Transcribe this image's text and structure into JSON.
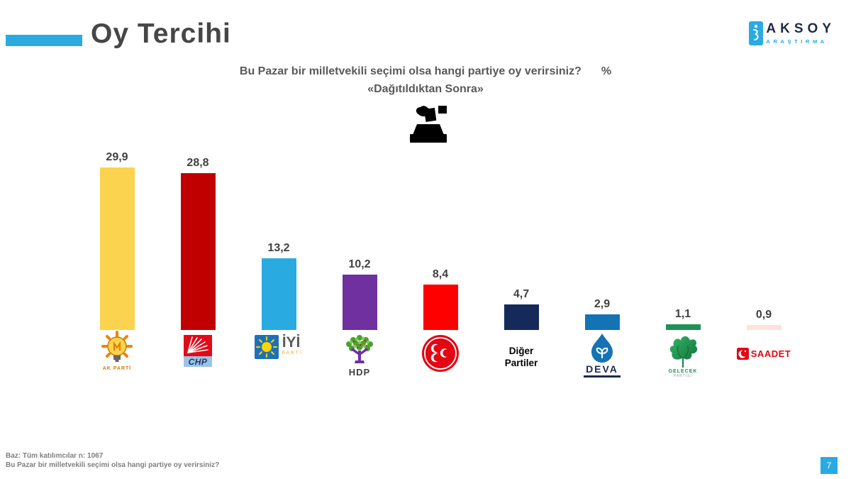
{
  "header": {
    "title": "Oy Tercihi",
    "accent_color": "#29ABE2",
    "brand": {
      "name": "AKSOY",
      "subtitle": "ARAŞTIRMA"
    }
  },
  "subtitle": {
    "question": "Bu Pazar bir milletvekili seçimi olsa hangi partiye oy verirsiniz?",
    "percent": "%",
    "line2": "«Dağıtıldıktan Sonra»"
  },
  "chart_data": {
    "type": "bar",
    "title": "Bu Pazar bir milletvekili seçimi olsa hangi partiye oy verirsiniz? % «Dağıtıldıktan Sonra»",
    "categories": [
      "AK PARTİ",
      "CHP",
      "İYİ PARTİ",
      "HDP",
      "MHP",
      "Diğer Partiler",
      "DEVA",
      "GELECEK PARTİSİ",
      "SAADET"
    ],
    "values": [
      29.9,
      28.8,
      13.2,
      10.2,
      8.4,
      4.7,
      2.9,
      1.1,
      0.9
    ],
    "ylim": [
      0,
      33
    ],
    "grid": false,
    "legend": false,
    "bars": [
      {
        "party": "AK PARTİ",
        "value": 29.9,
        "label": "29,9",
        "color": "#FBD34F"
      },
      {
        "party": "CHP",
        "value": 28.8,
        "label": "28,8",
        "color": "#C00000"
      },
      {
        "party": "İYİ PARTİ",
        "value": 13.2,
        "label": "13,2",
        "color": "#29ABE2"
      },
      {
        "party": "HDP",
        "value": 10.2,
        "label": "10,2",
        "color": "#7030A0"
      },
      {
        "party": "MHP",
        "value": 8.4,
        "label": "8,4",
        "color": "#FF0000"
      },
      {
        "party": "Diğer Partiler",
        "value": 4.7,
        "label": "4,7",
        "color": "#16295B"
      },
      {
        "party": "DEVA",
        "value": 2.9,
        "label": "2,9",
        "color": "#1473B5"
      },
      {
        "party": "GELECEK PARTİSİ",
        "value": 1.1,
        "label": "1,1",
        "color": "#1E9254"
      },
      {
        "party": "SAADET",
        "value": 0.9,
        "label": "0,9",
        "color": "#FBE3DB"
      }
    ]
  },
  "party_logos": {
    "akparti": {
      "label": "AK PARTİ"
    },
    "chp": {
      "label": "CHP"
    },
    "iyi": {
      "label": "İYİ",
      "sublabel": "PARTİ"
    },
    "hdp": {
      "label": "HDP"
    },
    "diger": {
      "line1": "Diğer",
      "line2": "Partiler"
    },
    "deva": {
      "label": "DEVA"
    },
    "gelecek": {
      "label": "GELECEK",
      "sublabel": "PARTİSİ"
    },
    "saadet": {
      "label": "SAADET"
    }
  },
  "footer": {
    "line1": "Baz: Tüm katılımcılar n: 1067",
    "line2": "Bu Pazar bir milletvekili seçimi olsa hangi partiye oy verirsiniz?",
    "page_number": "7"
  }
}
